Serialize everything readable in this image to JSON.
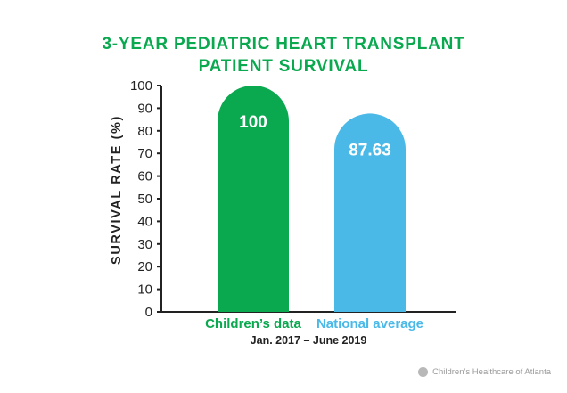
{
  "chart_data": {
    "type": "bar",
    "title_lines": [
      "3-YEAR PEDIATRIC HEART TRANSPLANT",
      "PATIENT SURVIVAL"
    ],
    "categories": [
      "Children’s data",
      "National average"
    ],
    "values": [
      100,
      87.63
    ],
    "value_labels": [
      "100",
      "87.63"
    ],
    "ylabel": "SURVIVAL RATE (%)",
    "xlabel": "",
    "ylim": [
      0,
      100
    ],
    "yticks": [
      "0",
      "10",
      "20",
      "30",
      "40",
      "50",
      "60",
      "70",
      "80",
      "90",
      "100"
    ],
    "period_note": "Jan. 2017 – June 2019",
    "colors": {
      "title": "#0aa84f",
      "bar_childrens": "#0aa84f",
      "bar_national": "#4bb9e8",
      "axis": "#222222"
    }
  },
  "footer": {
    "icon": "logo-mark-icon",
    "text": "Children’s Healthcare of Atlanta"
  }
}
